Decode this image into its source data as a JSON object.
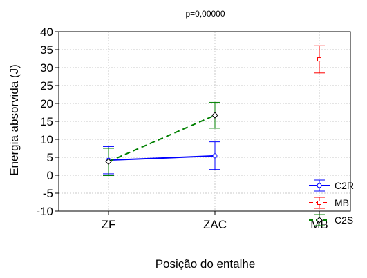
{
  "chart_data": {
    "type": "line",
    "title": "p=0,00000",
    "xlabel": "Posição do entalhe",
    "ylabel": "Energia absorvida (J)",
    "categories": [
      "ZF",
      "ZAC",
      "MB"
    ],
    "ylim": [
      -10,
      40
    ],
    "yticks": [
      -10,
      -5,
      0,
      5,
      10,
      15,
      20,
      25,
      30,
      35,
      40
    ],
    "ytick_labels": [
      "-10",
      "-5",
      "0",
      "5",
      "10",
      "15",
      "20",
      "25",
      "30",
      "35",
      "40"
    ],
    "grid": true,
    "legend_position": "bottom-right",
    "series": [
      {
        "name": "C2R",
        "color": "#0000ff",
        "line_style": "solid",
        "marker": "circle",
        "values": [
          4.2,
          5.4,
          null
        ],
        "err_low": [
          0.4,
          1.6,
          null
        ],
        "err_high": [
          8.0,
          9.3,
          null
        ]
      },
      {
        "name": "MB",
        "color": "#ff0000",
        "line_style": "dashed",
        "marker": "square",
        "values": [
          null,
          null,
          32.3
        ],
        "err_low": [
          null,
          null,
          28.5
        ],
        "err_high": [
          null,
          null,
          36.1
        ]
      },
      {
        "name": "C2S",
        "color": "#008000",
        "line_style": "dashed",
        "marker": "diamond",
        "values": [
          3.8,
          16.7,
          null
        ],
        "err_low": [
          -0.1,
          13.1,
          null
        ],
        "err_high": [
          7.5,
          20.3,
          null
        ]
      }
    ]
  }
}
